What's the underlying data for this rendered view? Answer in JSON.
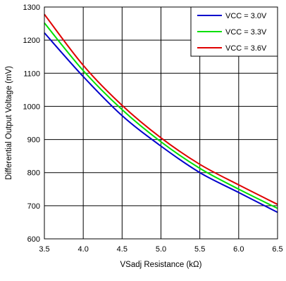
{
  "chart_data": {
    "type": "line",
    "title": "",
    "xlabel": "VSadj Resistance (kΩ)",
    "ylabel": "Differential Output Voltage (mV)",
    "xlim": [
      3.5,
      6.5
    ],
    "ylim": [
      600,
      1300
    ],
    "x_ticks": [
      "3.5",
      "4.0",
      "4.5",
      "5.0",
      "5.5",
      "6.0",
      "6.5"
    ],
    "y_ticks": [
      "600",
      "700",
      "800",
      "900",
      "1000",
      "1100",
      "1200",
      "1300"
    ],
    "grid": true,
    "legend_position": "top-right",
    "x": [
      3.5,
      4.0,
      4.5,
      5.0,
      5.5,
      6.0,
      6.5
    ],
    "series": [
      {
        "name": "VCC = 3.0V",
        "color": "#0000cc",
        "values": [
          1222,
          1090,
          972,
          880,
          800,
          740,
          680
        ]
      },
      {
        "name": "VCC = 3.3V",
        "color": "#00e000",
        "values": [
          1252,
          1108,
          990,
          893,
          813,
          750,
          692
        ]
      },
      {
        "name": "VCC = 3.6V",
        "color": "#e00000",
        "values": [
          1278,
          1124,
          1003,
          905,
          825,
          763,
          704
        ]
      }
    ]
  }
}
